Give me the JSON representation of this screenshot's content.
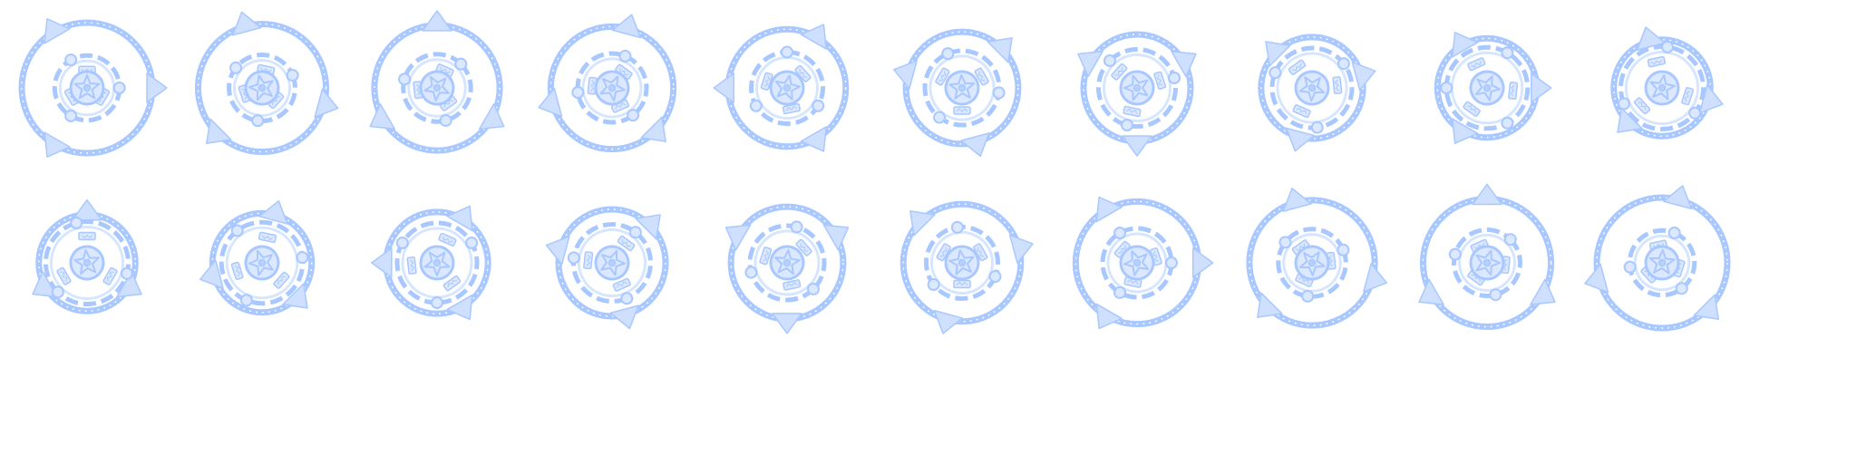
{
  "sprite_sheet": {
    "background": "#ffffff",
    "colors": {
      "ring": "#a9c8ff",
      "ring_light": "#d6e6ff",
      "fill": "#dbe8ff",
      "triangle_fill": "#cfe0ff",
      "triangle_stroke": "#a9c8ff",
      "core": "#b7d1ff"
    },
    "frame_count": 20,
    "rows": 2,
    "columns": 10,
    "frames": [
      {
        "index": 1,
        "rotation_deg": 0,
        "ring_scale": 1.0
      },
      {
        "index": 2,
        "rotation_deg": 15,
        "ring_scale": 0.98
      },
      {
        "index": 3,
        "rotation_deg": 30,
        "ring_scale": 0.96
      },
      {
        "index": 4,
        "rotation_deg": 45,
        "ring_scale": 0.94
      },
      {
        "index": 5,
        "rotation_deg": 60,
        "ring_scale": 0.9
      },
      {
        "index": 6,
        "rotation_deg": 75,
        "ring_scale": 0.86
      },
      {
        "index": 7,
        "rotation_deg": 90,
        "ring_scale": 0.82
      },
      {
        "index": 8,
        "rotation_deg": 105,
        "ring_scale": 0.78
      },
      {
        "index": 9,
        "rotation_deg": 120,
        "ring_scale": 0.76
      },
      {
        "index": 10,
        "rotation_deg": 135,
        "ring_scale": 0.74
      },
      {
        "index": 11,
        "rotation_deg": 150,
        "ring_scale": 0.74
      },
      {
        "index": 12,
        "rotation_deg": 165,
        "ring_scale": 0.76
      },
      {
        "index": 13,
        "rotation_deg": 180,
        "ring_scale": 0.78
      },
      {
        "index": 14,
        "rotation_deg": 195,
        "ring_scale": 0.82
      },
      {
        "index": 15,
        "rotation_deg": 210,
        "ring_scale": 0.86
      },
      {
        "index": 16,
        "rotation_deg": 225,
        "ring_scale": 0.9
      },
      {
        "index": 17,
        "rotation_deg": 240,
        "ring_scale": 0.94
      },
      {
        "index": 18,
        "rotation_deg": 255,
        "ring_scale": 0.96
      },
      {
        "index": 19,
        "rotation_deg": 270,
        "ring_scale": 0.98
      },
      {
        "index": 20,
        "rotation_deg": 285,
        "ring_scale": 1.0
      }
    ]
  }
}
